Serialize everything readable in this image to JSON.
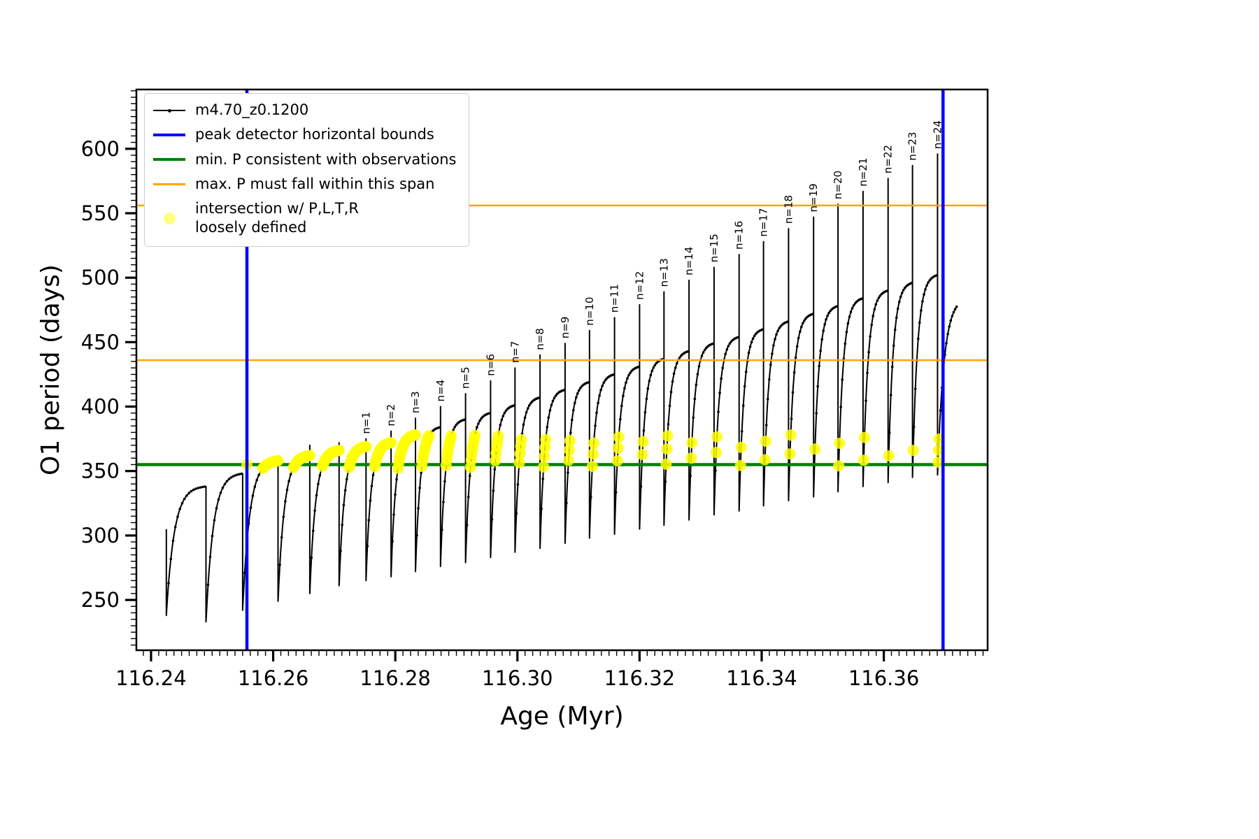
{
  "chart_data": {
    "type": "line",
    "title": "",
    "xlabel": "Age (Myr)",
    "ylabel": "O1 period (days)",
    "xlim": [
      116.2376,
      116.377
    ],
    "ylim": [
      211,
      646
    ],
    "x_major_ticks": [
      116.24,
      116.26,
      116.28,
      116.3,
      116.32,
      116.34,
      116.36
    ],
    "x_minor_step": 0.00125,
    "y_major_ticks": [
      250,
      300,
      350,
      400,
      450,
      500,
      550,
      600
    ],
    "y_minor_step": 5,
    "grid": false,
    "legend_position": "upper-left",
    "colors": {
      "series": "#000000",
      "bounds_blue": "#0000ff",
      "min_green": "#008000",
      "span_orange": "#ffa500",
      "intersection_yellow": "#ffff00"
    },
    "series_label": "m4.70_z0.1200",
    "series_start": {
      "x": 116.2425,
      "y": 305
    },
    "ref_lines": {
      "blue_x": [
        116.2557,
        116.3697
      ],
      "green_y": 355,
      "orange_y": [
        436,
        556
      ]
    },
    "intersection": {
      "band": [
        352,
        378
      ],
      "x_min": 116.2545,
      "extra_points": [
        [
          116.2557,
          355
        ]
      ]
    },
    "pulses": [
      {
        "end": 116.249,
        "dip": 238,
        "hump": 338
      },
      {
        "end": 116.255,
        "dip": 233,
        "hump": 348
      },
      {
        "end": 116.2608,
        "dip": 242,
        "hump": 358
      },
      {
        "end": 116.266,
        "dip": 249,
        "hump": 362,
        "spike": 370
      },
      {
        "end": 116.2708,
        "dip": 255,
        "hump": 366,
        "spike": 372
      },
      {
        "end": 116.2752,
        "dip": 261,
        "hump": 369,
        "spike": 375,
        "label": "n=1"
      },
      {
        "end": 116.2793,
        "dip": 265,
        "hump": 372,
        "spike": 381,
        "label": "n=2"
      },
      {
        "end": 116.2833,
        "dip": 268,
        "hump": 378,
        "spike": 391,
        "label": "n=3"
      },
      {
        "end": 116.2874,
        "dip": 272,
        "hump": 384,
        "spike": 400,
        "label": "n=4"
      },
      {
        "end": 116.2915,
        "dip": 276,
        "hump": 390,
        "spike": 410,
        "label": "n=5"
      },
      {
        "end": 116.2956,
        "dip": 279,
        "hump": 395,
        "spike": 420,
        "label": "n=6"
      },
      {
        "end": 116.2996,
        "dip": 283,
        "hump": 401,
        "spike": 430,
        "label": "n=7"
      },
      {
        "end": 116.3037,
        "dip": 287,
        "hump": 407,
        "spike": 440,
        "label": "n=8"
      },
      {
        "end": 116.3078,
        "dip": 290,
        "hump": 413,
        "spike": 449,
        "label": "n=9"
      },
      {
        "end": 116.3118,
        "dip": 294,
        "hump": 419,
        "spike": 459,
        "label": "n=10"
      },
      {
        "end": 116.3159,
        "dip": 298,
        "hump": 425,
        "spike": 469,
        "label": "n=11"
      },
      {
        "end": 116.32,
        "dip": 301,
        "hump": 431,
        "spike": 479,
        "label": "n=12"
      },
      {
        "end": 116.324,
        "dip": 305,
        "hump": 437,
        "spike": 489,
        "label": "n=13"
      },
      {
        "end": 116.3281,
        "dip": 308,
        "hump": 443,
        "spike": 498,
        "label": "n=14"
      },
      {
        "end": 116.3322,
        "dip": 312,
        "hump": 449,
        "spike": 508,
        "label": "n=15"
      },
      {
        "end": 116.3363,
        "dip": 316,
        "hump": 454,
        "spike": 518,
        "label": "n=16"
      },
      {
        "end": 116.3403,
        "dip": 319,
        "hump": 460,
        "spike": 528,
        "label": "n=17"
      },
      {
        "end": 116.3444,
        "dip": 323,
        "hump": 466,
        "spike": 538,
        "label": "n=18"
      },
      {
        "end": 116.3485,
        "dip": 327,
        "hump": 472,
        "spike": 547,
        "label": "n=19"
      },
      {
        "end": 116.3525,
        "dip": 330,
        "hump": 478,
        "spike": 557,
        "label": "n=20"
      },
      {
        "end": 116.3566,
        "dip": 334,
        "hump": 484,
        "spike": 567,
        "label": "n=21"
      },
      {
        "end": 116.3607,
        "dip": 338,
        "hump": 490,
        "spike": 577,
        "label": "n=22"
      },
      {
        "end": 116.3647,
        "dip": 341,
        "hump": 496,
        "spike": 587,
        "label": "n=23"
      },
      {
        "end": 116.3688,
        "dip": 345,
        "hump": 502,
        "spike": 596,
        "label": "n=24"
      }
    ],
    "tail": {
      "dip": 347,
      "end": 116.372,
      "y_end": 478
    }
  },
  "legend": {
    "entries": [
      {
        "label": "m4.70_z0.1200"
      },
      {
        "label": "peak detector horizontal bounds"
      },
      {
        "label": "min. P consistent with observations"
      },
      {
        "label": "max. P must fall within this span"
      },
      {
        "label": "intersection w/ P,L,T,R",
        "label2": "loosely defined"
      }
    ]
  }
}
